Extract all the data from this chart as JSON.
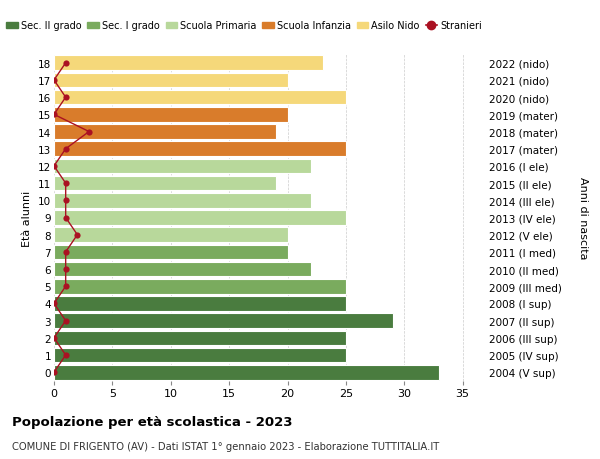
{
  "ages": [
    18,
    17,
    16,
    15,
    14,
    13,
    12,
    11,
    10,
    9,
    8,
    7,
    6,
    5,
    4,
    3,
    2,
    1,
    0
  ],
  "labels_right": [
    "2004 (V sup)",
    "2005 (IV sup)",
    "2006 (III sup)",
    "2007 (II sup)",
    "2008 (I sup)",
    "2009 (III med)",
    "2010 (II med)",
    "2011 (I med)",
    "2012 (V ele)",
    "2013 (IV ele)",
    "2014 (III ele)",
    "2015 (II ele)",
    "2016 (I ele)",
    "2017 (mater)",
    "2018 (mater)",
    "2019 (mater)",
    "2020 (nido)",
    "2021 (nido)",
    "2022 (nido)"
  ],
  "bar_values": [
    33,
    25,
    25,
    29,
    25,
    25,
    22,
    20,
    20,
    25,
    22,
    19,
    22,
    25,
    19,
    20,
    25,
    20,
    23
  ],
  "bar_colors": [
    "#4a7c3f",
    "#4a7c3f",
    "#4a7c3f",
    "#4a7c3f",
    "#4a7c3f",
    "#7aab5e",
    "#7aab5e",
    "#7aab5e",
    "#b8d89b",
    "#b8d89b",
    "#b8d89b",
    "#b8d89b",
    "#b8d89b",
    "#d97c2b",
    "#d97c2b",
    "#d97c2b",
    "#f5d87a",
    "#f5d87a",
    "#f5d87a"
  ],
  "stranieri_values": [
    0,
    1,
    0,
    1,
    0,
    1,
    1,
    1,
    2,
    1,
    1,
    1,
    0,
    1,
    3,
    0,
    1,
    0,
    1
  ],
  "stranieri_color": "#aa1122",
  "legend_items": [
    {
      "label": "Sec. II grado",
      "color": "#4a7c3f"
    },
    {
      "label": "Sec. I grado",
      "color": "#7aab5e"
    },
    {
      "label": "Scuola Primaria",
      "color": "#b8d89b"
    },
    {
      "label": "Scuola Infanzia",
      "color": "#d97c2b"
    },
    {
      "label": "Asilo Nido",
      "color": "#f5d87a"
    },
    {
      "label": "Stranieri",
      "color": "#aa1122",
      "marker": "o"
    }
  ],
  "ylabel_left": "Età alunni",
  "ylabel_right": "Anni di nascita",
  "xlim": [
    0,
    37
  ],
  "xticks": [
    0,
    5,
    10,
    15,
    20,
    25,
    30,
    35
  ],
  "title": "Popolazione per età scolastica - 2023",
  "subtitle": "COMUNE DI FRIGENTO (AV) - Dati ISTAT 1° gennaio 2023 - Elaborazione TUTTITALIA.IT",
  "background_color": "#ffffff",
  "bar_height": 0.85,
  "grid_color": "#cccccc"
}
